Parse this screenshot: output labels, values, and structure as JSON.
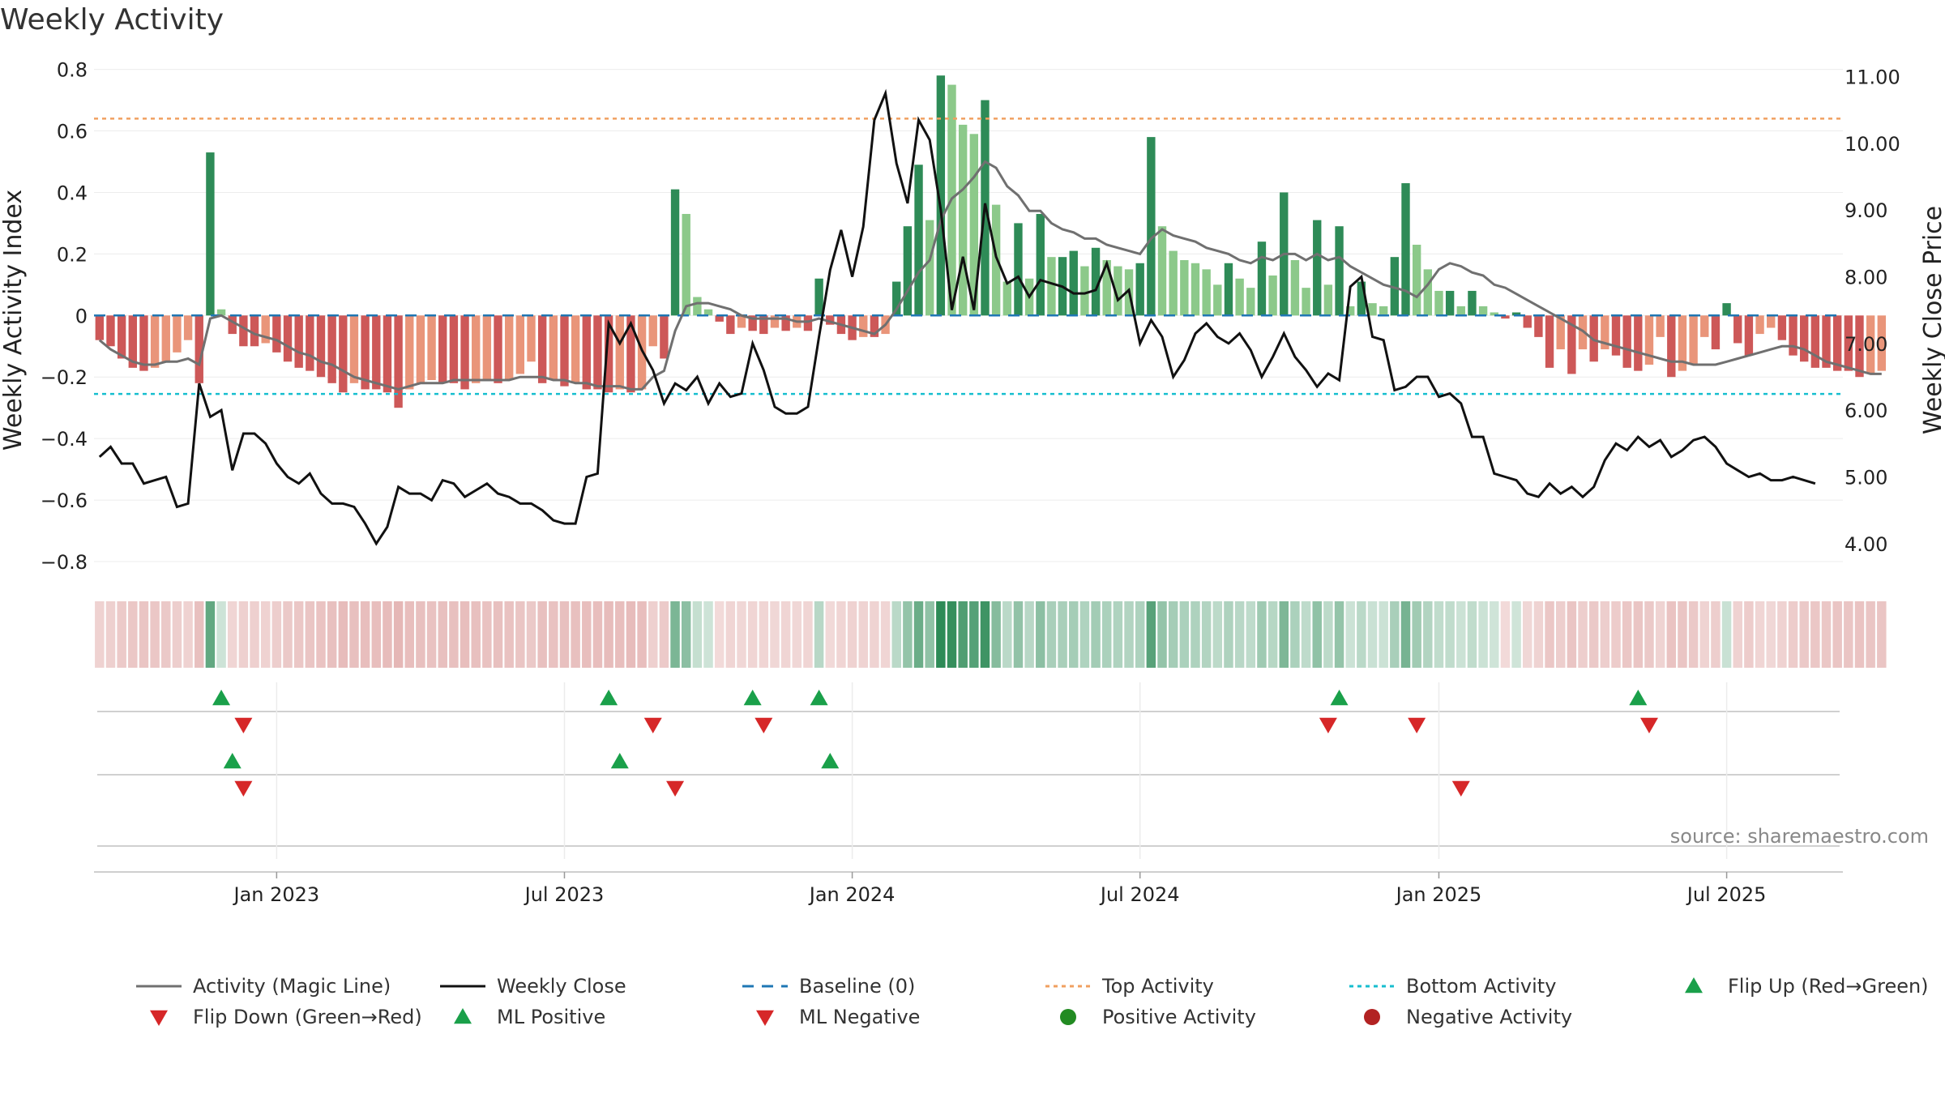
{
  "title": "Weekly Activity",
  "source": "source: sharemaestro.com",
  "colors": {
    "green_dark": "#2e8b57",
    "green_light": "#8cc98a",
    "red_dark": "#cd5858",
    "red_light": "#e9957a",
    "magic_line": "#707070",
    "close_line": "#111111",
    "baseline": "#1f77b4",
    "top_line": "#f0a060",
    "bottom_line": "#17becf",
    "marker_up": "#1aa04a",
    "marker_down": "#d62728",
    "dot_pos": "#228b22",
    "dot_neg": "#b22222"
  },
  "chart_data": {
    "type": "bar+line",
    "title": "Weekly Activity",
    "ylabel_left": "Weekly Activity Index",
    "ylabel_right": "Weekly Close Price",
    "ylim_left": [
      -0.85,
      0.82
    ],
    "ylim_right": [
      3.5,
      11.2
    ],
    "yticks_left": [
      {
        "v": 0.8,
        "label": "0.8"
      },
      {
        "v": 0.6,
        "label": "0.6"
      },
      {
        "v": 0.4,
        "label": "0.4"
      },
      {
        "v": 0.2,
        "label": "0.2"
      },
      {
        "v": 0.0,
        "label": "0"
      },
      {
        "v": -0.2,
        "label": "−0.2"
      },
      {
        "v": -0.4,
        "label": "−0.4"
      },
      {
        "v": -0.6,
        "label": "−0.6"
      },
      {
        "v": -0.8,
        "label": "−0.8"
      }
    ],
    "yticks_right": [
      {
        "v": 11,
        "label": "11.00"
      },
      {
        "v": 10,
        "label": "10.00"
      },
      {
        "v": 9,
        "label": "9.00"
      },
      {
        "v": 8,
        "label": "8.00"
      },
      {
        "v": 7,
        "label": "7.00"
      },
      {
        "v": 6,
        "label": "6.00"
      },
      {
        "v": 5,
        "label": "5.00"
      },
      {
        "v": 4,
        "label": "4.00"
      }
    ],
    "xticks": [
      {
        "week": 16,
        "label": "Jan 2023"
      },
      {
        "week": 42,
        "label": "Jul 2023"
      },
      {
        "week": 68,
        "label": "Jan 2024"
      },
      {
        "week": 94,
        "label": "Jul 2024"
      },
      {
        "week": 121,
        "label": "Jan 2025"
      },
      {
        "week": 147,
        "label": "Jul 2025"
      }
    ],
    "weeks_total": 158,
    "top_activity": 0.64,
    "bottom_activity": -0.255,
    "baseline": 0,
    "activity": [
      -0.08,
      -0.1,
      -0.14,
      -0.17,
      -0.18,
      -0.17,
      -0.15,
      -0.12,
      -0.08,
      -0.22,
      0.53,
      0.02,
      -0.06,
      -0.1,
      -0.1,
      -0.09,
      -0.12,
      -0.15,
      -0.17,
      -0.18,
      -0.2,
      -0.22,
      -0.25,
      -0.22,
      -0.24,
      -0.24,
      -0.25,
      -0.3,
      -0.24,
      -0.22,
      -0.21,
      -0.22,
      -0.22,
      -0.24,
      -0.22,
      -0.21,
      -0.22,
      -0.21,
      -0.19,
      -0.15,
      -0.22,
      -0.21,
      -0.23,
      -0.22,
      -0.24,
      -0.24,
      -0.25,
      -0.24,
      -0.25,
      -0.24,
      -0.1,
      -0.14,
      0.41,
      0.33,
      0.06,
      0.02,
      -0.02,
      -0.06,
      -0.04,
      -0.05,
      -0.06,
      -0.04,
      -0.05,
      -0.04,
      -0.05,
      0.12,
      -0.03,
      -0.06,
      -0.08,
      -0.07,
      -0.07,
      -0.06,
      0.11,
      0.29,
      0.49,
      0.31,
      0.78,
      0.75,
      0.62,
      0.59,
      0.7,
      0.36,
      0.11,
      0.3,
      0.12,
      0.33,
      0.19,
      0.19,
      0.21,
      0.16,
      0.22,
      0.18,
      0.16,
      0.15,
      0.17,
      0.58,
      0.29,
      0.21,
      0.18,
      0.17,
      0.15,
      0.1,
      0.17,
      0.12,
      0.09,
      0.24,
      0.13,
      0.4,
      0.18,
      0.09,
      0.31,
      0.1,
      0.29,
      0.03,
      0.11,
      0.04,
      0.03,
      0.19,
      0.43,
      0.23,
      0.15,
      0.08,
      0.08,
      0.03,
      0.08,
      0.03,
      0.01,
      -0.01,
      0.01,
      -0.04,
      -0.07,
      -0.17,
      -0.11,
      -0.19,
      -0.11,
      -0.15,
      -0.11,
      -0.13,
      -0.17,
      -0.18,
      -0.16,
      -0.07,
      -0.2,
      -0.18,
      -0.16,
      -0.07,
      -0.11,
      0.04,
      -0.09,
      -0.13,
      -0.06,
      -0.04,
      -0.08,
      -0.13,
      -0.15,
      -0.17,
      -0.17,
      -0.18,
      -0.18,
      -0.2,
      -0.19,
      -0.18
    ],
    "magic_line": [
      -0.08,
      -0.11,
      -0.13,
      -0.15,
      -0.16,
      -0.16,
      -0.15,
      -0.15,
      -0.14,
      -0.16,
      -0.01,
      0.0,
      -0.02,
      -0.04,
      -0.06,
      -0.07,
      -0.08,
      -0.1,
      -0.12,
      -0.13,
      -0.15,
      -0.16,
      -0.18,
      -0.2,
      -0.21,
      -0.22,
      -0.23,
      -0.24,
      -0.23,
      -0.22,
      -0.22,
      -0.22,
      -0.21,
      -0.21,
      -0.21,
      -0.21,
      -0.21,
      -0.21,
      -0.2,
      -0.2,
      -0.2,
      -0.21,
      -0.21,
      -0.22,
      -0.22,
      -0.23,
      -0.23,
      -0.23,
      -0.24,
      -0.24,
      -0.2,
      -0.18,
      -0.05,
      0.03,
      0.04,
      0.04,
      0.03,
      0.02,
      0.0,
      -0.01,
      -0.01,
      -0.01,
      -0.01,
      -0.02,
      -0.02,
      -0.01,
      -0.02,
      -0.03,
      -0.04,
      -0.05,
      -0.06,
      -0.03,
      0.02,
      0.08,
      0.14,
      0.18,
      0.31,
      0.38,
      0.41,
      0.45,
      0.5,
      0.48,
      0.42,
      0.39,
      0.34,
      0.34,
      0.3,
      0.28,
      0.27,
      0.25,
      0.25,
      0.23,
      0.22,
      0.21,
      0.2,
      0.25,
      0.28,
      0.26,
      0.25,
      0.24,
      0.22,
      0.21,
      0.2,
      0.18,
      0.17,
      0.19,
      0.18,
      0.2,
      0.2,
      0.18,
      0.2,
      0.18,
      0.19,
      0.16,
      0.14,
      0.12,
      0.1,
      0.09,
      0.08,
      0.06,
      0.1,
      0.15,
      0.17,
      0.16,
      0.14,
      0.13,
      0.1,
      0.09,
      0.07,
      0.05,
      0.03,
      0.01,
      -0.01,
      -0.03,
      -0.05,
      -0.08,
      -0.09,
      -0.1,
      -0.11,
      -0.12,
      -0.13,
      -0.14,
      -0.15,
      -0.15,
      -0.16,
      -0.16,
      -0.16,
      -0.15,
      -0.14,
      -0.13,
      -0.12,
      -0.11,
      -0.1,
      -0.1,
      -0.11,
      -0.13,
      -0.15,
      -0.16,
      -0.17,
      -0.18,
      -0.19,
      -0.19
    ],
    "weekly_close": [
      5.3,
      5.45,
      5.2,
      5.2,
      4.9,
      4.95,
      5.0,
      4.55,
      4.6,
      6.4,
      5.9,
      6.0,
      5.1,
      5.65,
      5.65,
      5.5,
      5.2,
      5.0,
      4.9,
      5.05,
      4.75,
      4.6,
      4.6,
      4.55,
      4.3,
      4.0,
      4.25,
      4.85,
      4.75,
      4.75,
      4.65,
      4.95,
      4.9,
      4.7,
      4.8,
      4.9,
      4.75,
      4.7,
      4.6,
      4.6,
      4.5,
      4.35,
      4.3,
      4.3,
      5.0,
      5.05,
      7.3,
      7.0,
      7.3,
      6.9,
      6.6,
      6.1,
      6.4,
      6.3,
      6.5,
      6.1,
      6.4,
      6.2,
      6.25,
      7.0,
      6.6,
      6.05,
      5.95,
      5.95,
      6.05,
      7.1,
      8.1,
      8.7,
      8.0,
      8.75,
      10.35,
      10.75,
      9.7,
      9.1,
      10.35,
      10.05,
      9.0,
      7.5,
      8.3,
      7.5,
      9.1,
      8.3,
      7.9,
      8.0,
      7.7,
      7.95,
      7.9,
      7.85,
      7.75,
      7.75,
      7.8,
      8.2,
      7.65,
      7.8,
      7.0,
      7.35,
      7.1,
      6.5,
      6.75,
      7.15,
      7.3,
      7.1,
      7.0,
      7.15,
      6.9,
      6.5,
      6.8,
      7.15,
      6.8,
      6.6,
      6.35,
      6.55,
      6.45,
      7.85,
      8.0,
      7.1,
      7.05,
      6.3,
      6.35,
      6.5,
      6.5,
      6.2,
      6.25,
      6.1,
      5.6,
      5.6,
      5.05,
      5.0,
      4.95,
      4.75,
      4.7,
      4.9,
      4.75,
      4.85,
      4.7,
      4.85,
      5.25,
      5.5,
      5.4,
      5.6,
      5.45,
      5.55,
      5.3,
      5.4,
      5.55,
      5.6,
      5.45,
      5.2,
      5.1,
      5.0,
      5.05,
      4.95,
      4.95,
      5.0,
      4.95,
      4.9
    ],
    "flip_up": [
      11,
      46,
      59,
      65,
      112,
      139
    ],
    "flip_down": [
      13,
      50,
      60,
      111,
      119,
      140
    ],
    "ml_positive": [
      12,
      47,
      66
    ],
    "ml_negative": [
      13,
      52,
      123
    ],
    "heatmap_strip": "activity colour per week",
    "legend": [
      {
        "key": "magic",
        "label": "Activity (Magic Line)"
      },
      {
        "key": "close",
        "label": "Weekly Close"
      },
      {
        "key": "baseline",
        "label": "Baseline (0)"
      },
      {
        "key": "top",
        "label": "Top Activity"
      },
      {
        "key": "bottom",
        "label": "Bottom Activity"
      },
      {
        "key": "flipup",
        "label": "Flip Up (Red→Green)"
      },
      {
        "key": "flipdown",
        "label": "Flip Down (Green→Red)"
      },
      {
        "key": "mlpos",
        "label": "ML Positive"
      },
      {
        "key": "mlneg",
        "label": "ML Negative"
      },
      {
        "key": "posact",
        "label": "Positive Activity"
      },
      {
        "key": "negact",
        "label": "Negative Activity"
      }
    ]
  }
}
